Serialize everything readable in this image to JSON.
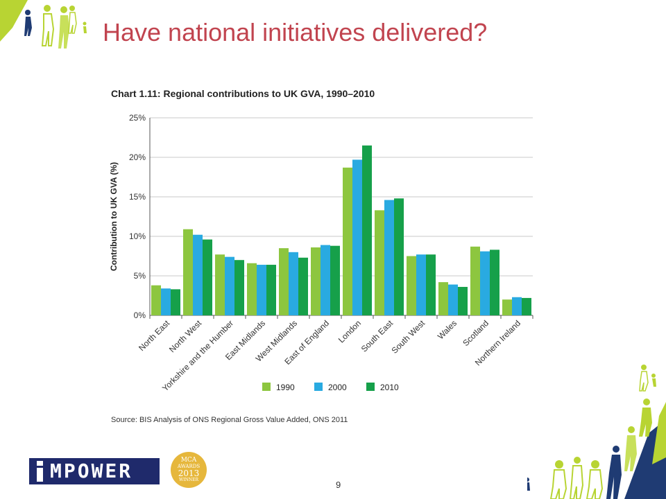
{
  "slide": {
    "title": "Have national initiatives delivered?",
    "page_number": "9"
  },
  "logo": {
    "text": "MPOWER"
  },
  "award": {
    "line1": "MCA",
    "line2": "AWARDS",
    "line3": "2013",
    "line4": "WINNER"
  },
  "colors": {
    "s1990": "#8dc63f",
    "s2000": "#29aae1",
    "s2010": "#16a04a",
    "title": "#c1444f"
  },
  "chart_data": {
    "type": "bar",
    "title": "Chart 1.11: Regional contributions to UK GVA, 1990–2010",
    "ylabel": "Contribution to UK GVA (%)",
    "xlabel": "",
    "ylim": [
      0,
      25
    ],
    "yticks": [
      "0%",
      "5%",
      "10%",
      "15%",
      "20%",
      "25%"
    ],
    "grid": true,
    "legend_position": "bottom",
    "categories": [
      "North East",
      "North West",
      "Yorkshire and the Humber",
      "East Midlands",
      "West Midlands",
      "East of England",
      "London",
      "South East",
      "South West",
      "Wales",
      "Scotland",
      "Northern Ireland"
    ],
    "series": [
      {
        "name": "1990",
        "values": [
          3.8,
          10.9,
          7.7,
          6.6,
          8.5,
          8.6,
          18.7,
          13.3,
          7.5,
          4.2,
          8.7,
          2.0
        ]
      },
      {
        "name": "2000",
        "values": [
          3.4,
          10.2,
          7.4,
          6.4,
          8.0,
          8.9,
          19.7,
          14.6,
          7.7,
          3.9,
          8.1,
          2.3
        ]
      },
      {
        "name": "2010",
        "values": [
          3.3,
          9.6,
          7.0,
          6.4,
          7.3,
          8.8,
          21.5,
          14.8,
          7.7,
          3.6,
          8.3,
          2.2
        ]
      }
    ],
    "source": "Source: BIS Analysis of ONS Regional Gross Value Added, ONS 2011"
  }
}
